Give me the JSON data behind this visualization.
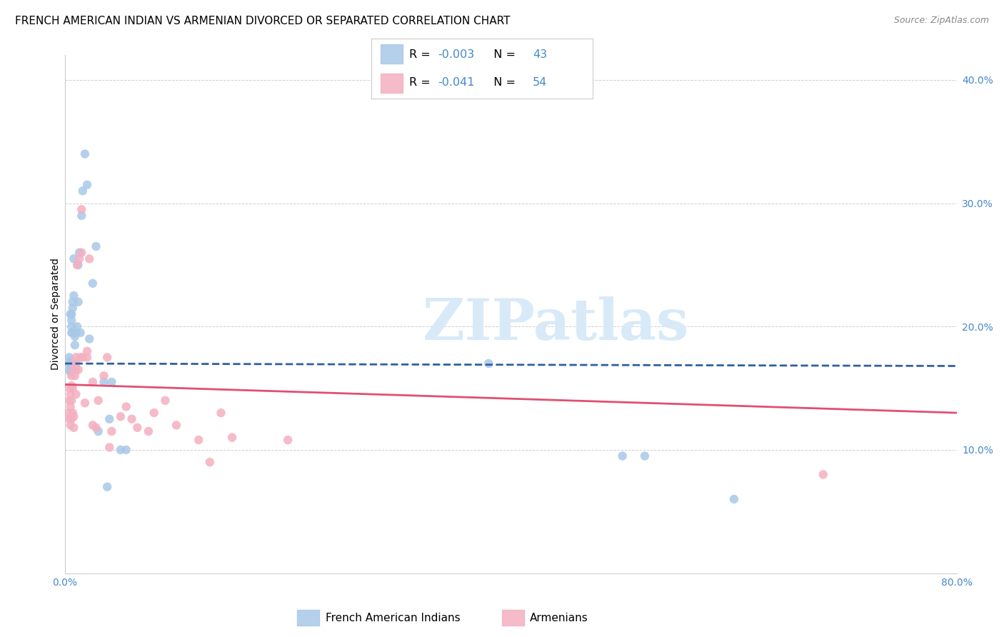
{
  "title": "FRENCH AMERICAN INDIAN VS ARMENIAN DIVORCED OR SEPARATED CORRELATION CHART",
  "source": "Source: ZipAtlas.com",
  "ylabel": "Divorced or Separated",
  "xlim": [
    0.0,
    0.8
  ],
  "ylim": [
    0.0,
    0.42
  ],
  "yticks": [
    0.1,
    0.2,
    0.3,
    0.4
  ],
  "ytick_labels": [
    "10.0%",
    "20.0%",
    "30.0%",
    "40.0%"
  ],
  "xticks": [
    0.0,
    0.1,
    0.2,
    0.3,
    0.4,
    0.5,
    0.6,
    0.7,
    0.8
  ],
  "xtick_labels": [
    "0.0%",
    "",
    "",
    "",
    "",
    "",
    "",
    "",
    "80.0%"
  ],
  "blue_color": "#a8c8e8",
  "pink_color": "#f4b0c0",
  "blue_line_color": "#3060a0",
  "pink_line_color": "#e05070",
  "tick_label_color": "#4488cc",
  "watermark_color": "#d8eaf8",
  "blue_points_x": [
    0.004,
    0.004,
    0.004,
    0.005,
    0.005,
    0.005,
    0.005,
    0.006,
    0.006,
    0.006,
    0.006,
    0.007,
    0.007,
    0.007,
    0.008,
    0.008,
    0.009,
    0.009,
    0.01,
    0.01,
    0.011,
    0.012,
    0.012,
    0.013,
    0.014,
    0.015,
    0.016,
    0.018,
    0.02,
    0.022,
    0.025,
    0.028,
    0.03,
    0.035,
    0.038,
    0.04,
    0.042,
    0.05,
    0.055,
    0.38,
    0.5,
    0.52,
    0.6
  ],
  "blue_points_y": [
    0.17,
    0.165,
    0.175,
    0.172,
    0.168,
    0.163,
    0.21,
    0.21,
    0.205,
    0.2,
    0.195,
    0.195,
    0.215,
    0.22,
    0.225,
    0.255,
    0.185,
    0.192,
    0.17,
    0.195,
    0.2,
    0.25,
    0.22,
    0.26,
    0.195,
    0.29,
    0.31,
    0.34,
    0.315,
    0.19,
    0.235,
    0.265,
    0.115,
    0.155,
    0.07,
    0.125,
    0.155,
    0.1,
    0.1,
    0.17,
    0.095,
    0.095,
    0.06
  ],
  "pink_points_x": [
    0.003,
    0.004,
    0.004,
    0.004,
    0.005,
    0.005,
    0.005,
    0.006,
    0.006,
    0.006,
    0.006,
    0.007,
    0.007,
    0.008,
    0.008,
    0.008,
    0.009,
    0.009,
    0.01,
    0.01,
    0.01,
    0.011,
    0.012,
    0.013,
    0.014,
    0.015,
    0.015,
    0.016,
    0.018,
    0.02,
    0.02,
    0.022,
    0.025,
    0.025,
    0.028,
    0.03,
    0.035,
    0.038,
    0.04,
    0.042,
    0.05,
    0.055,
    0.06,
    0.065,
    0.075,
    0.08,
    0.09,
    0.1,
    0.12,
    0.13,
    0.14,
    0.15,
    0.2,
    0.68
  ],
  "pink_points_y": [
    0.13,
    0.125,
    0.14,
    0.15,
    0.12,
    0.135,
    0.145,
    0.125,
    0.14,
    0.152,
    0.16,
    0.13,
    0.15,
    0.118,
    0.127,
    0.165,
    0.16,
    0.17,
    0.145,
    0.165,
    0.175,
    0.25,
    0.165,
    0.255,
    0.175,
    0.26,
    0.295,
    0.175,
    0.138,
    0.175,
    0.18,
    0.255,
    0.12,
    0.155,
    0.118,
    0.14,
    0.16,
    0.175,
    0.102,
    0.115,
    0.127,
    0.135,
    0.125,
    0.118,
    0.115,
    0.13,
    0.14,
    0.12,
    0.108,
    0.09,
    0.13,
    0.11,
    0.108,
    0.08
  ],
  "blue_trend_x": [
    0.0,
    0.8
  ],
  "blue_trend_y": [
    0.17,
    0.168
  ],
  "pink_trend_x": [
    0.0,
    0.8
  ],
  "pink_trend_y": [
    0.153,
    0.13
  ],
  "background_color": "#ffffff",
  "grid_color": "#bbbbbb",
  "title_fontsize": 11,
  "axis_label_fontsize": 10,
  "tick_fontsize": 10,
  "marker_size": 80,
  "legend_R_label1": "R = ",
  "legend_R_value1": "-0.003",
  "legend_N_label1": "  N = ",
  "legend_N_value1": "43",
  "legend_R_label2": "R =  ",
  "legend_R_value2": "-0.041",
  "legend_N_label2": "  N = ",
  "legend_N_value2": "54",
  "bottom_legend_label1": "French American Indians",
  "bottom_legend_label2": "Armenians"
}
